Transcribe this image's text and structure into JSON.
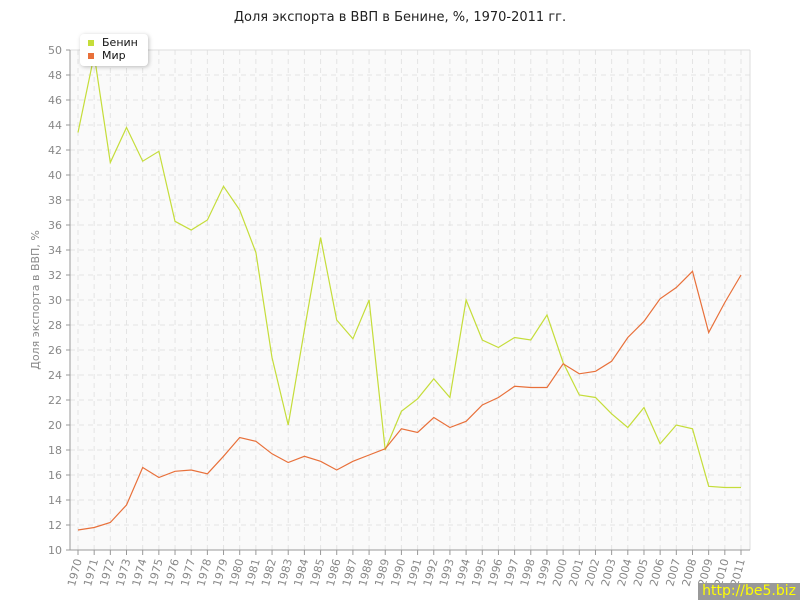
{
  "chart_data": {
    "type": "line",
    "title": "Доля экспорта в ВВП в Бенине, %, 1970-2011 гг.",
    "xlabel": "",
    "ylabel": "Доля экспорта в ВВП, %",
    "ylim": [
      10,
      50
    ],
    "yticks": [
      10,
      12,
      14,
      16,
      18,
      20,
      22,
      24,
      26,
      28,
      30,
      32,
      34,
      36,
      38,
      40,
      42,
      44,
      46,
      48,
      50
    ],
    "grid": true,
    "legend_position": "top-left",
    "x": [
      1970,
      1971,
      1972,
      1973,
      1974,
      1975,
      1976,
      1977,
      1978,
      1979,
      1980,
      1981,
      1982,
      1983,
      1984,
      1985,
      1986,
      1987,
      1988,
      1989,
      1990,
      1991,
      1992,
      1993,
      1994,
      1995,
      1996,
      1997,
      1998,
      1999,
      2000,
      2001,
      2002,
      2003,
      2004,
      2005,
      2006,
      2007,
      2008,
      2009,
      2010,
      2011
    ],
    "series": [
      {
        "name": "Бенин",
        "color": "#c5dd3a",
        "values": [
          43.4,
          49.6,
          41.0,
          43.8,
          41.1,
          41.9,
          36.3,
          35.6,
          36.4,
          39.1,
          37.2,
          33.8,
          25.4,
          20.0,
          27.6,
          35.0,
          28.4,
          26.9,
          30.0,
          18.0,
          21.1,
          22.1,
          23.7,
          22.2,
          30.0,
          26.8,
          26.2,
          27.0,
          26.8,
          28.8,
          25.0,
          22.4,
          22.2,
          20.9,
          19.8,
          21.4,
          18.5,
          20.0,
          19.7,
          15.1,
          15.0,
          15.0
        ]
      },
      {
        "name": "Мир",
        "color": "#e8703a",
        "values": [
          11.6,
          11.8,
          12.2,
          13.6,
          16.6,
          15.8,
          16.3,
          16.4,
          16.1,
          17.5,
          19.0,
          18.7,
          17.7,
          17.0,
          17.5,
          17.1,
          16.4,
          17.1,
          17.6,
          18.1,
          19.7,
          19.4,
          20.6,
          19.8,
          20.3,
          21.6,
          22.2,
          23.1,
          23.0,
          23.0,
          24.9,
          24.1,
          24.3,
          25.1,
          27.0,
          28.3,
          30.1,
          31.0,
          32.3,
          27.4,
          29.8,
          32.0
        ]
      }
    ]
  },
  "watermark": "http://be5.biz"
}
